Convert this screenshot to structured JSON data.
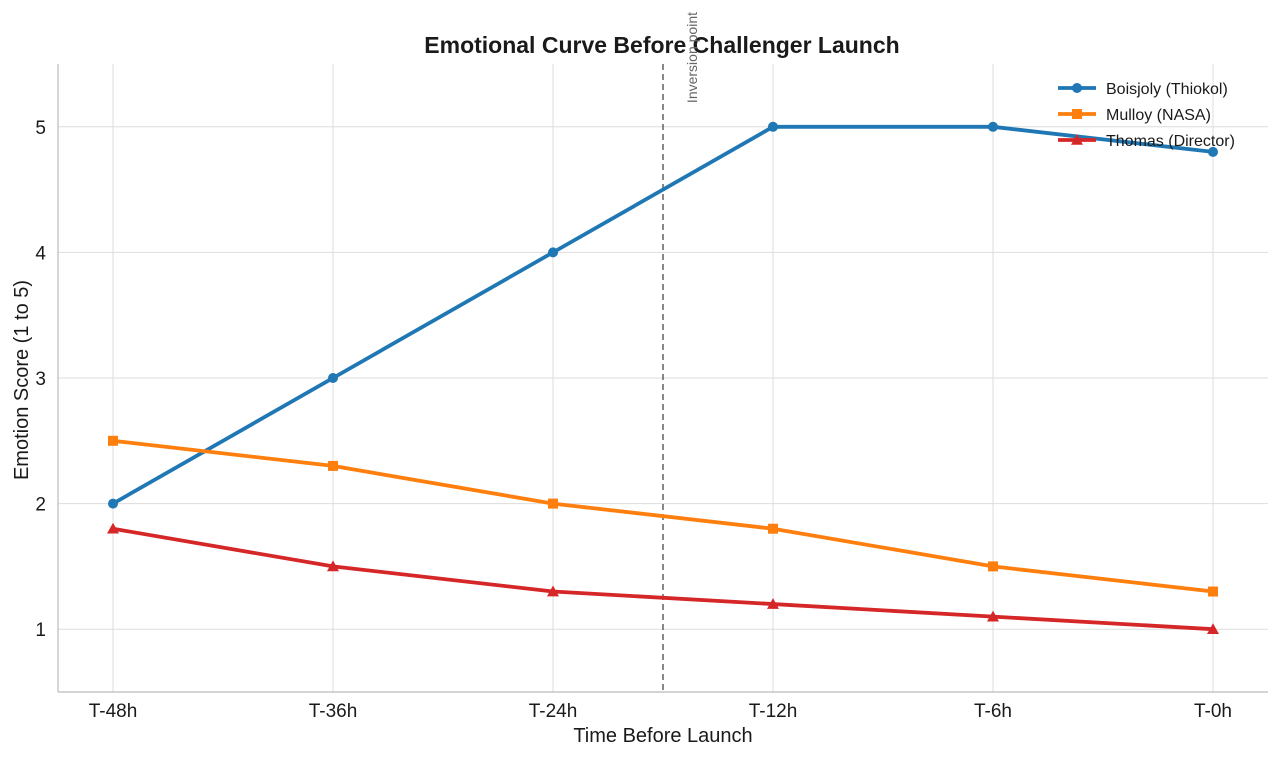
{
  "chart_data": {
    "type": "line",
    "title": "Emotional Curve Before Challenger Launch",
    "xlabel": "Time Before Launch",
    "ylabel": "Emotion Score (1 to 5)",
    "categories": [
      "T-48h",
      "T-36h",
      "T-24h",
      "T-12h",
      "T-6h",
      "T-0h"
    ],
    "ylim": [
      0.5,
      5.5
    ],
    "yticks": [
      1,
      2,
      3,
      4,
      5
    ],
    "grid": true,
    "legend_position": "top-right",
    "series": [
      {
        "name": "Boisjoly (Thiokol)",
        "color": "#1f77b4",
        "marker": "circle",
        "values": [
          2.0,
          3.0,
          4.0,
          5.0,
          5.0,
          4.8
        ]
      },
      {
        "name": "Mulloy (NASA)",
        "color": "#ff7f0e",
        "marker": "square",
        "values": [
          2.5,
          2.3,
          2.0,
          1.8,
          1.5,
          1.3
        ]
      },
      {
        "name": "Thomas (Director)",
        "color": "#d62728",
        "marker": "triangle",
        "values": [
          1.8,
          1.5,
          1.3,
          1.2,
          1.1,
          1.0
        ]
      }
    ],
    "annotations": [
      {
        "label": "Inversion point",
        "x_position": 2.5,
        "style": "vertical-dashed-line"
      }
    ]
  }
}
